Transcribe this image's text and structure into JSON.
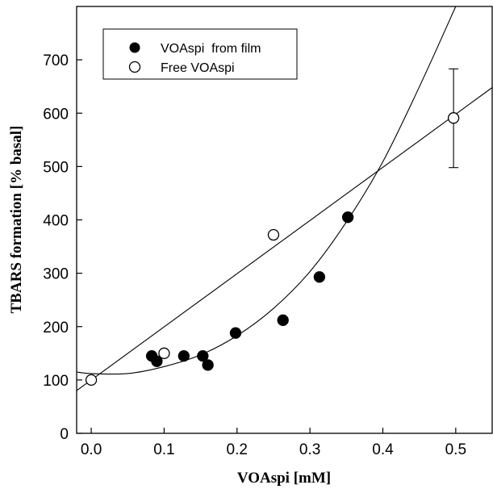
{
  "chart_data": {
    "type": "scatter",
    "xlabel": "VOAspi [mM]",
    "ylabel": "TBARS formation [% basal]",
    "xlim": [
      -0.02,
      0.55
    ],
    "ylim": [
      0,
      800
    ],
    "xticks": [
      0.0,
      0.1,
      0.2,
      0.3,
      0.4,
      0.5
    ],
    "xtick_labels": [
      "0.0",
      "0.1",
      "0.2",
      "0.3",
      "0.4",
      "0.5"
    ],
    "yticks": [
      0,
      100,
      200,
      300,
      400,
      500,
      600,
      700
    ],
    "ytick_labels": [
      "0",
      "100",
      "200",
      "300",
      "400",
      "500",
      "600",
      "700"
    ],
    "grid": false,
    "legend_position": "top-left",
    "series": [
      {
        "name": "VOAspi  from film",
        "marker": "filled-circle",
        "color": "#000000",
        "x": [
          0.083,
          0.09,
          0.127,
          0.153,
          0.16,
          0.198,
          0.263,
          0.313,
          0.352
        ],
        "y": [
          145,
          135,
          145,
          145,
          128,
          188,
          212,
          293,
          405
        ]
      },
      {
        "name": "Free VOAspi",
        "marker": "open-circle",
        "color": "#000000",
        "x": [
          0.0,
          0.1,
          0.25,
          0.497
        ],
        "y": [
          100,
          150,
          372,
          591
        ],
        "error_bars": [
          {
            "x": 0.497,
            "low": 498,
            "high": 683
          }
        ]
      }
    ],
    "fits": [
      {
        "shape": "linear",
        "points": [
          [
            -0.02,
            80
          ],
          [
            0.55,
            648
          ]
        ]
      },
      {
        "shape": "curve",
        "points": [
          [
            -0.02,
            115
          ],
          [
            0.0,
            112
          ],
          [
            0.05,
            112
          ],
          [
            0.1,
            125
          ],
          [
            0.15,
            147
          ],
          [
            0.2,
            183
          ],
          [
            0.25,
            234
          ],
          [
            0.3,
            303
          ],
          [
            0.35,
            396
          ],
          [
            0.4,
            509
          ],
          [
            0.45,
            649
          ],
          [
            0.5,
            800
          ]
        ]
      }
    ]
  }
}
